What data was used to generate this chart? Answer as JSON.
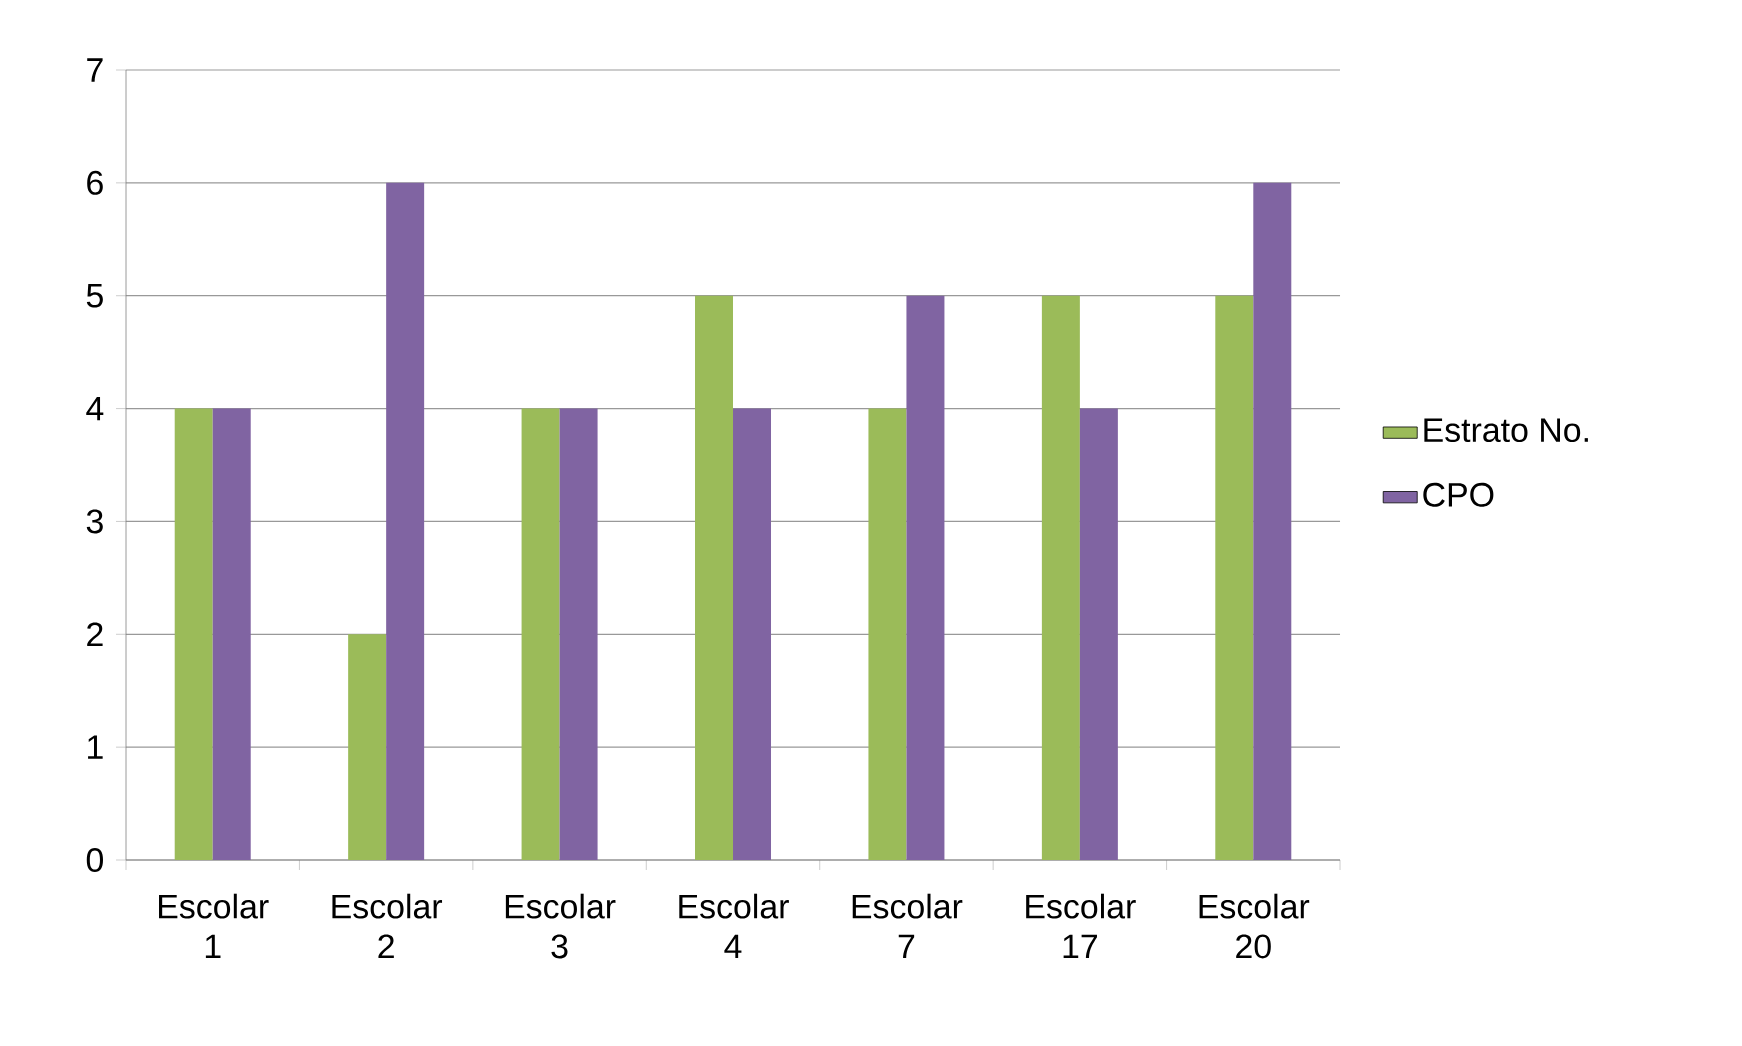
{
  "chart_data": {
    "type": "bar",
    "categories": [
      "Escolar 1",
      "Escolar 2",
      "Escolar 3",
      "Escolar 4",
      "Escolar 7",
      "Escolar 17",
      "Escolar 20"
    ],
    "series": [
      {
        "name": "Estrato No.",
        "color": "#9bbb59",
        "values": [
          4,
          2,
          4,
          5,
          4,
          5,
          5
        ]
      },
      {
        "name": "CPO",
        "color": "#8064a2",
        "values": [
          4,
          6,
          4,
          4,
          5,
          4,
          6
        ]
      }
    ],
    "ylim": [
      0,
      7
    ],
    "yticks": [
      0,
      1,
      2,
      3,
      4,
      5,
      6,
      7
    ],
    "grid": "y",
    "legend": "right"
  }
}
